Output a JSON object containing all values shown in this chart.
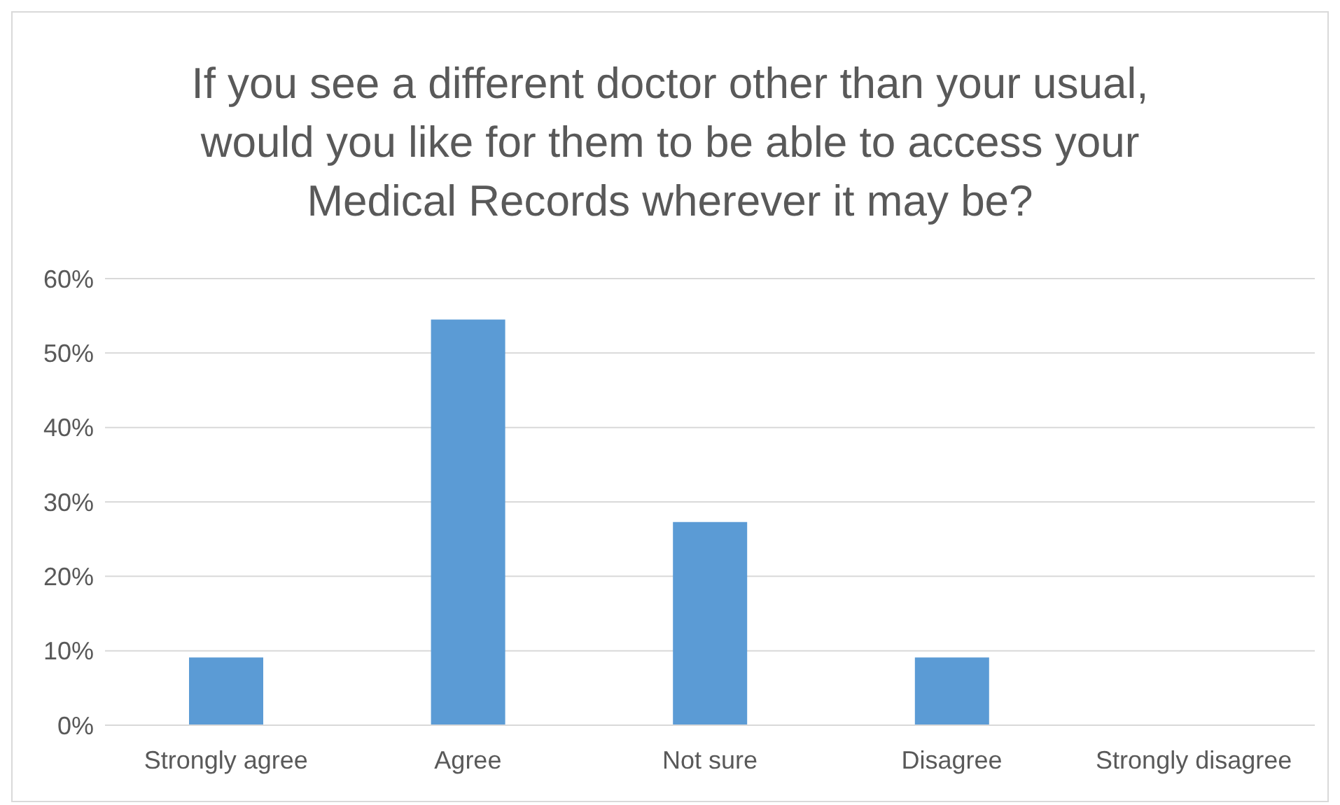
{
  "chart_data": {
    "type": "bar",
    "title": "If you see a different doctor other than your usual, would you like for them to be able to access your Medical Records wherever it may be?",
    "categories": [
      "Strongly agree",
      "Agree",
      "Not sure",
      "Disagree",
      "Strongly disagree"
    ],
    "values": [
      9.1,
      54.5,
      27.3,
      9.1,
      0
    ],
    "color": "#5b9bd5",
    "ylim": [
      0,
      60
    ],
    "yticks": [
      {
        "value": 0,
        "label": "0%"
      },
      {
        "value": 10,
        "label": "10%"
      },
      {
        "value": 20,
        "label": "20%"
      },
      {
        "value": 30,
        "label": "30%"
      },
      {
        "value": 40,
        "label": "40%"
      },
      {
        "value": 50,
        "label": "50%"
      },
      {
        "value": 60,
        "label": "60%"
      }
    ],
    "grid": "y",
    "legend": false
  }
}
